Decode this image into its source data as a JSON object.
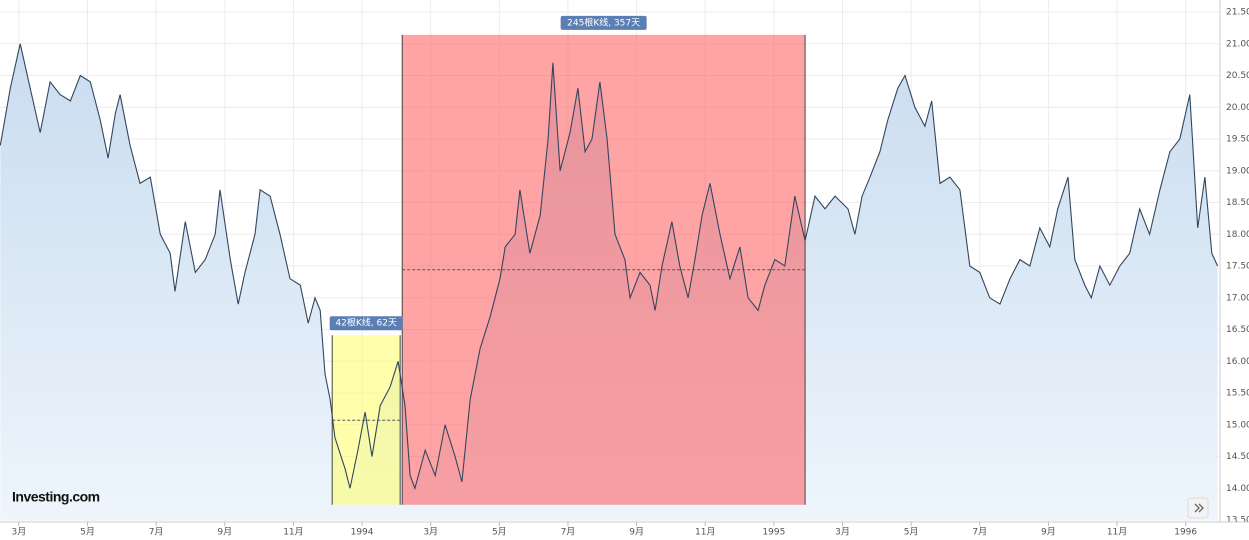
{
  "chart_data": {
    "type": "area-line",
    "logo": "Investing.com",
    "x": [
      1.46,
      1.75,
      2.04,
      2.33,
      2.62,
      2.91,
      3.2,
      3.5,
      3.79,
      4.08,
      4.37,
      4.6,
      4.81,
      4.95,
      5.24,
      5.53,
      5.83,
      6.12,
      6.41,
      6.55,
      6.85,
      7.14,
      7.43,
      7.72,
      7.86,
      8.16,
      8.39,
      8.59,
      8.88,
      9.03,
      9.32,
      9.61,
      9.9,
      10.2,
      10.43,
      10.63,
      10.78,
      10.92,
      11.07,
      11.21,
      11.51,
      11.65,
      11.88,
      12.09,
      12.29,
      12.53,
      12.82,
      13.05,
      13.25,
      13.4,
      13.54,
      13.84,
      14.13,
      14.42,
      14.71,
      14.91,
      15.15,
      15.44,
      15.73,
      16.02,
      16.17,
      16.46,
      16.6,
      16.89,
      17.19,
      17.42,
      17.56,
      17.77,
      18.06,
      18.29,
      18.5,
      18.7,
      18.93,
      19.14,
      19.37,
      19.66,
      19.81,
      20.1,
      20.39,
      20.54,
      20.74,
      21.03,
      21.26,
      21.5,
      21.7,
      21.91,
      22.14,
      22.43,
      22.72,
      23.01,
      23.25,
      23.54,
      23.74,
      24.03,
      24.32,
      24.61,
      24.91,
      25.2,
      25.49,
      25.78,
      26.16,
      26.36,
      26.57,
      26.8,
      27.09,
      27.32,
      27.61,
      27.82,
      28.11,
      28.4,
      28.6,
      28.84,
      29.13,
      29.42,
      29.71,
      30.0,
      30.29,
      30.59,
      30.88,
      31.17,
      31.46,
      31.75,
      32.04,
      32.27,
      32.57,
      32.77,
      33.06,
      33.25,
      33.5,
      33.79,
      34.08,
      34.37,
      34.66,
      34.95,
      35.25,
      35.54,
      35.83,
      36.12,
      36.35,
      36.56,
      36.76,
      36.93
    ],
    "values": [
      19.4,
      20.3,
      21.0,
      20.3,
      19.6,
      20.4,
      20.2,
      20.1,
      20.5,
      20.4,
      19.8,
      19.2,
      19.9,
      20.2,
      19.4,
      18.8,
      18.9,
      18.0,
      17.7,
      17.1,
      18.2,
      17.4,
      17.6,
      18.0,
      18.7,
      17.6,
      16.9,
      17.4,
      18.0,
      18.7,
      18.6,
      18.0,
      17.3,
      17.2,
      16.6,
      17.0,
      16.8,
      15.8,
      15.4,
      14.8,
      14.3,
      14.0,
      14.6,
      15.2,
      14.5,
      15.3,
      15.6,
      16.0,
      15.3,
      14.2,
      14.0,
      14.6,
      14.2,
      15.0,
      14.5,
      14.1,
      15.4,
      16.2,
      16.7,
      17.3,
      17.8,
      18.0,
      18.7,
      17.7,
      18.3,
      19.5,
      20.7,
      19.0,
      19.6,
      20.3,
      19.3,
      19.5,
      20.4,
      19.5,
      18.0,
      17.6,
      17.0,
      17.4,
      17.2,
      16.8,
      17.5,
      18.2,
      17.5,
      17.0,
      17.6,
      18.3,
      18.8,
      18.0,
      17.3,
      17.8,
      17.0,
      16.8,
      17.2,
      17.6,
      17.5,
      18.6,
      17.9,
      18.6,
      18.4,
      18.6,
      18.4,
      18.0,
      18.6,
      18.9,
      19.3,
      19.8,
      20.3,
      20.5,
      20.0,
      19.7,
      20.1,
      18.8,
      18.9,
      18.7,
      17.5,
      17.4,
      17.0,
      16.9,
      17.3,
      17.6,
      17.5,
      18.1,
      17.8,
      18.4,
      18.9,
      17.6,
      17.2,
      17.0,
      17.5,
      17.2,
      17.5,
      17.7,
      18.4,
      18.0,
      18.7,
      19.3,
      19.5,
      20.2,
      18.1,
      18.9,
      17.7,
      17.5
    ],
    "xlim": [
      1.45,
      37.0
    ],
    "xticks": [
      {
        "value": 2,
        "label": "3月"
      },
      {
        "value": 4,
        "label": "5月"
      },
      {
        "value": 6,
        "label": "7月"
      },
      {
        "value": 8,
        "label": "9月"
      },
      {
        "value": 10,
        "label": "11月"
      },
      {
        "value": 12,
        "label": "1994"
      },
      {
        "value": 14,
        "label": "3月"
      },
      {
        "value": 16,
        "label": "5月"
      },
      {
        "value": 18,
        "label": "7月"
      },
      {
        "value": 20,
        "label": "9月"
      },
      {
        "value": 22,
        "label": "11月"
      },
      {
        "value": 24,
        "label": "1995"
      },
      {
        "value": 26,
        "label": "3月"
      },
      {
        "value": 28,
        "label": "5月"
      },
      {
        "value": 30,
        "label": "7月"
      },
      {
        "value": 32,
        "label": "9月"
      },
      {
        "value": 34,
        "label": "11月"
      },
      {
        "value": 36,
        "label": "1996"
      }
    ],
    "ylim": [
      13.5,
      21.5
    ],
    "yticks": [
      {
        "value": 13.5,
        "label": "13.50"
      },
      {
        "value": 14,
        "label": "14.00"
      },
      {
        "value": 14.5,
        "label": "14.50"
      },
      {
        "value": 15,
        "label": "15.00"
      },
      {
        "value": 15.5,
        "label": "15.50"
      },
      {
        "value": 16,
        "label": "16.00"
      },
      {
        "value": 16.5,
        "label": "16.50"
      },
      {
        "value": 17,
        "label": "17.00"
      },
      {
        "value": 17.5,
        "label": "17.50"
      },
      {
        "value": 18,
        "label": "18.00"
      },
      {
        "value": 18.5,
        "label": "18.50"
      },
      {
        "value": 19,
        "label": "19.00"
      },
      {
        "value": 19.5,
        "label": "19.50"
      },
      {
        "value": 20,
        "label": "20.00"
      },
      {
        "value": 20.5,
        "label": "20.50"
      },
      {
        "value": 21,
        "label": "21.00"
      },
      {
        "value": 21.5,
        "label": "21.50"
      }
    ],
    "grid": true,
    "color": "#33465e",
    "ranges": [
      {
        "label": "42根K线, 62天",
        "x": [
          11.13,
          13.11
        ],
        "y": [
          13.74,
          16.41
        ],
        "mean": 15.07,
        "color": "#ffff66"
      },
      {
        "label": "245根K线, 357天",
        "x": [
          13.17,
          24.91
        ],
        "y": [
          13.74,
          21.14
        ],
        "mean": 17.44,
        "color": "#ff5a5a"
      }
    ]
  }
}
